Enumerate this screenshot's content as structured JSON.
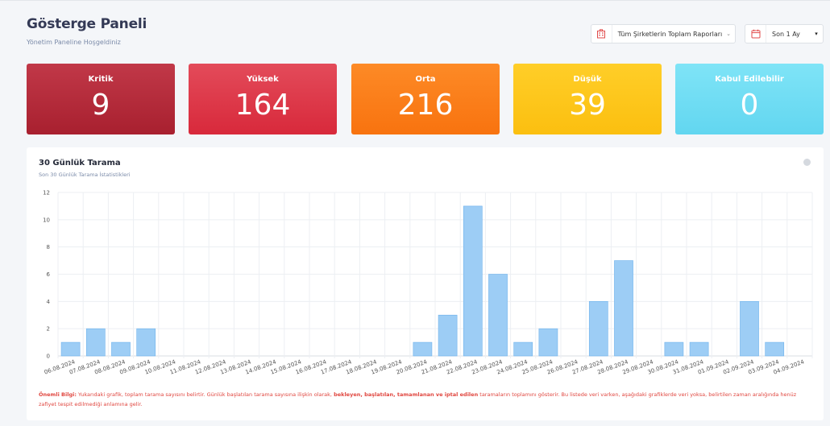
{
  "header": {
    "title": "Gösterge Paneli",
    "subtitle": "Yönetim Paneline Hoşgeldiniz"
  },
  "filters": {
    "company_icon": "building-icon",
    "company_value": "Tüm Şirketlerin Toplam Raporları",
    "period_icon": "calendar-icon",
    "period_value": "Son 1 Ay"
  },
  "cards": [
    {
      "label": "Kritik",
      "value": "9",
      "color": "#b42a3a"
    },
    {
      "label": "Yüksek",
      "value": "164",
      "color": "#dc3545"
    },
    {
      "label": "Orta",
      "value": "216",
      "color": "#fa7d1a"
    },
    {
      "label": "Düşük",
      "value": "39",
      "color": "#fdc51b"
    },
    {
      "label": "Kabul Edilebilir",
      "value": "0",
      "color": "#6edcf4"
    }
  ],
  "panel": {
    "title": "30 Günlük Tarama",
    "subtitle": "Son 30 Günlük Tarama İstatistikleri"
  },
  "chart_data": {
    "type": "bar",
    "categories": [
      "06.08.2024",
      "07.08.2024",
      "08.08.2024",
      "09.08.2024",
      "10.08.2024",
      "11.08.2024",
      "12.08.2024",
      "13.08.2024",
      "14.08.2024",
      "15.08.2024",
      "16.08.2024",
      "17.08.2024",
      "18.08.2024",
      "19.08.2024",
      "20.08.2024",
      "21.08.2024",
      "22.08.2024",
      "23.08.2024",
      "24.08.2024",
      "25.08.2024",
      "26.08.2024",
      "27.08.2024",
      "28.08.2024",
      "29.08.2024",
      "30.08.2024",
      "31.08.2024",
      "01.09.2024",
      "02.09.2024",
      "03.09.2024",
      "04.09.2024"
    ],
    "values": [
      1,
      2,
      1,
      2,
      0,
      0,
      0,
      0,
      0,
      0,
      0,
      0,
      0,
      0,
      1,
      3,
      11,
      6,
      1,
      2,
      0,
      4,
      7,
      0,
      1,
      1,
      0,
      4,
      1,
      0
    ],
    "ylim": [
      0,
      12
    ],
    "yticks": [
      0,
      2,
      4,
      6,
      8,
      10,
      12
    ],
    "grid": true,
    "bar_color": "#9dcdf5",
    "bar_border": "#6fb3ec"
  },
  "note": {
    "lead": "Önemli Bilgi:",
    "part1": " Yukarıdaki grafik, toplam tarama sayısını belirtir. Günlük başlatılan tarama sayısına ilişkin olarak, ",
    "bold": "bekleyen, başlatılan, tamamlanan ve iptal edilen",
    "part2": " taramaların toplamını gösterir. Bu listede veri varken, aşağıdaki grafiklerde veri yoksa, belirtilen zaman aralığında henüz zafiyet tespit edilmediği anlamına gelir."
  }
}
